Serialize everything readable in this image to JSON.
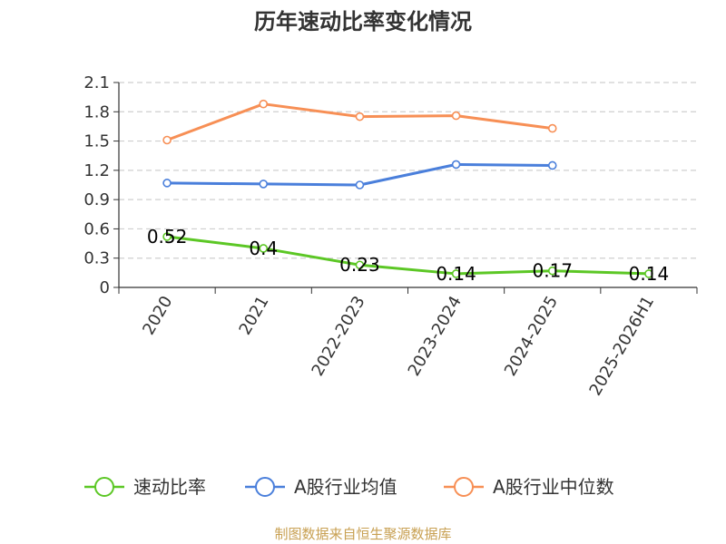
{
  "chart_data": {
    "type": "line",
    "title": "历年速动比率变化情况",
    "categories": [
      "2020",
      "2021",
      "2022-2023",
      "2023-2024",
      "2024-2025",
      "2025-2026H1"
    ],
    "yticks": [
      "0",
      "0.3",
      "0.6",
      "0.9",
      "1.2",
      "1.5",
      "1.8",
      "2.1"
    ],
    "ylim": [
      0,
      2.1
    ],
    "series": [
      {
        "name": "速动比率",
        "color": "#5cc725",
        "values": [
          0.52,
          0.4,
          0.23,
          0.14,
          0.17,
          0.14
        ],
        "labels": [
          "0.52",
          "0.4",
          "0.23",
          "0.14",
          "0.17",
          "0.14"
        ]
      },
      {
        "name": "A股行业均值",
        "color": "#4a7fdb",
        "values": [
          1.07,
          1.06,
          1.05,
          1.26,
          1.25,
          null
        ]
      },
      {
        "name": "A股行业中位数",
        "color": "#f78f55",
        "values": [
          1.51,
          1.88,
          1.75,
          1.76,
          1.63,
          null
        ]
      }
    ],
    "grid": true,
    "legend_position": "bottom"
  },
  "footer": "制图数据来自恒生聚源数据库"
}
